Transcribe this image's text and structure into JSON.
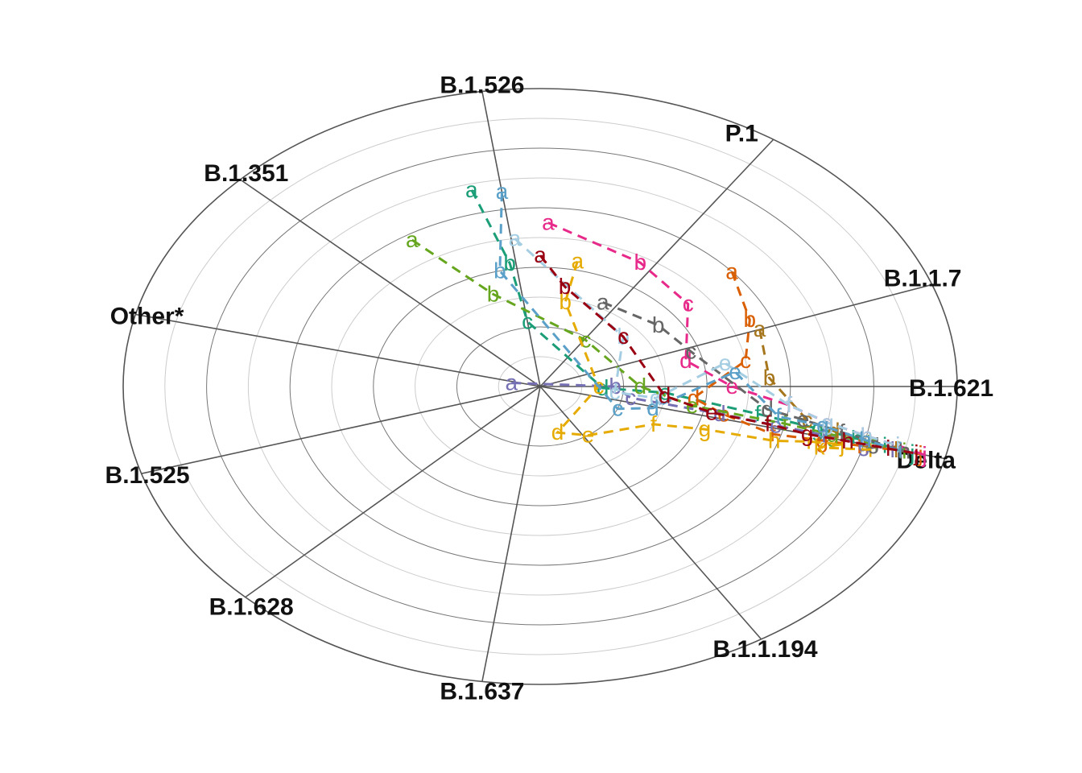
{
  "chart_data": {
    "type": "scatter",
    "subtype": "radial-trajectories",
    "title": "",
    "axes": [
      {
        "name": "Delta",
        "angle_deg": -14
      },
      {
        "name": "B.1.621",
        "angle_deg": 0
      },
      {
        "name": "B.1.1.7",
        "angle_deg": 20
      },
      {
        "name": "P.1",
        "angle_deg": 56
      },
      {
        "name": "B.1.526",
        "angle_deg": 98
      },
      {
        "name": "B.1.351",
        "angle_deg": 136
      },
      {
        "name": "Other*",
        "angle_deg": 166
      },
      {
        "name": "B.1.525",
        "angle_deg": 197
      },
      {
        "name": "B.1.628",
        "angle_deg": 225
      },
      {
        "name": "B.1.637",
        "angle_deg": 262
      },
      {
        "name": "B.1.1.194",
        "angle_deg": 302
      }
    ],
    "rings": [
      0.1,
      0.2,
      0.3,
      0.4,
      0.5,
      0.6,
      0.7,
      0.8,
      0.9,
      1.0
    ],
    "radius_range": [
      0,
      1
    ],
    "grid": true,
    "series": [
      {
        "color": "#1B9E77",
        "points": [
          {
            "label": "a",
            "r": 0.68,
            "theta": 104
          },
          {
            "label": "b",
            "r": 0.42,
            "theta": 100
          },
          {
            "label": "c",
            "r": 0.22,
            "theta": 98
          },
          {
            "label": "d",
            "r": 0.15,
            "theta": -2
          },
          {
            "label": "e",
            "r": 0.3,
            "theta": -4
          },
          {
            "label": "f",
            "r": 0.53,
            "theta": -10
          },
          {
            "label": "g",
            "r": 0.68,
            "theta": -12
          },
          {
            "label": "h",
            "r": 0.78,
            "theta": -13
          },
          {
            "label": "i",
            "r": 0.85,
            "theta": -13.5
          },
          {
            "label": "j",
            "r": 0.92,
            "theta": -14
          }
        ]
      },
      {
        "color": "#D95F02",
        "points": [
          {
            "label": "a",
            "r": 0.6,
            "theta": 40
          },
          {
            "label": "b",
            "r": 0.55,
            "theta": 24
          },
          {
            "label": "c",
            "r": 0.5,
            "theta": 10
          },
          {
            "label": "d",
            "r": 0.37,
            "theta": -6
          },
          {
            "label": "e",
            "r": 0.45,
            "theta": -12
          },
          {
            "label": "f",
            "r": 0.58,
            "theta": -16
          },
          {
            "label": "g",
            "r": 0.7,
            "theta": -15
          },
          {
            "label": "h",
            "r": 0.8,
            "theta": -14.5
          },
          {
            "label": "i",
            "r": 0.88,
            "theta": -14
          },
          {
            "label": "j",
            "r": 0.94,
            "theta": -14
          }
        ]
      },
      {
        "color": "#7570B3",
        "points": [
          {
            "label": "a",
            "r": 0.07,
            "theta": 170
          },
          {
            "label": "b",
            "r": 0.18,
            "theta": 0
          },
          {
            "label": "c",
            "r": 0.22,
            "theta": -10
          },
          {
            "label": "d",
            "r": 0.44,
            "theta": -12
          },
          {
            "label": "e",
            "r": 0.58,
            "theta": -13
          },
          {
            "label": "f",
            "r": 0.7,
            "theta": -13.5
          },
          {
            "label": "g",
            "r": 0.8,
            "theta": -14
          },
          {
            "label": "h",
            "r": 0.88,
            "theta": -14
          },
          {
            "label": "i",
            "r": 0.95,
            "theta": -14
          }
        ]
      },
      {
        "color": "#E7298A",
        "points": [
          {
            "label": "a",
            "r": 0.55,
            "theta": 88
          },
          {
            "label": "b",
            "r": 0.48,
            "theta": 60
          },
          {
            "label": "c",
            "r": 0.45,
            "theta": 38
          },
          {
            "label": "d",
            "r": 0.36,
            "theta": 14
          },
          {
            "label": "e",
            "r": 0.46,
            "theta": 0
          },
          {
            "label": "f",
            "r": 0.6,
            "theta": -6
          },
          {
            "label": "g",
            "r": 0.7,
            "theta": -10
          },
          {
            "label": "h",
            "r": 0.8,
            "theta": -12
          },
          {
            "label": "i",
            "r": 0.88,
            "theta": -13
          },
          {
            "label": "j",
            "r": 0.95,
            "theta": -14
          }
        ]
      },
      {
        "color": "#66A61E",
        "points": [
          {
            "label": "a",
            "r": 0.58,
            "theta": 122
          },
          {
            "label": "b",
            "r": 0.33,
            "theta": 110
          },
          {
            "label": "c",
            "r": 0.19,
            "theta": 55
          },
          {
            "label": "d",
            "r": 0.24,
            "theta": 0
          },
          {
            "label": "e",
            "r": 0.37,
            "theta": -10
          },
          {
            "label": "f",
            "r": 0.6,
            "theta": -12
          },
          {
            "label": "g",
            "r": 0.72,
            "theta": -13
          },
          {
            "label": "h",
            "r": 0.82,
            "theta": -13.5
          },
          {
            "label": "i",
            "r": 0.9,
            "theta": -14
          }
        ]
      },
      {
        "color": "#E6AB02",
        "points": [
          {
            "label": "a",
            "r": 0.43,
            "theta": 78
          },
          {
            "label": "b",
            "r": 0.29,
            "theta": 78
          },
          {
            "label": "c",
            "r": 0.14,
            "theta": 0
          },
          {
            "label": "d",
            "r": 0.16,
            "theta": 285
          },
          {
            "label": "e",
            "r": 0.2,
            "theta": 305
          },
          {
            "label": "f",
            "r": 0.3,
            "theta": 335
          },
          {
            "label": "g",
            "r": 0.42,
            "theta": 340
          },
          {
            "label": "h",
            "r": 0.59,
            "theta": 342
          },
          {
            "label": "i",
            "r": 0.67,
            "theta": 344
          },
          {
            "label": "j",
            "r": 0.75,
            "theta": 345
          },
          {
            "label": "k",
            "r": 0.7,
            "theta": 343
          },
          {
            "label": "l",
            "r": 0.82,
            "theta": 345
          }
        ]
      },
      {
        "color": "#A6761D",
        "points": [
          {
            "label": "a",
            "r": 0.56,
            "theta": 20
          },
          {
            "label": "b",
            "r": 0.55,
            "theta": 3
          },
          {
            "label": "c",
            "r": 0.65,
            "theta": -10
          },
          {
            "label": "d",
            "r": 0.72,
            "theta": -12
          },
          {
            "label": "e",
            "r": 0.8,
            "theta": -13
          },
          {
            "label": "f",
            "r": 0.88,
            "theta": -14
          }
        ]
      },
      {
        "color": "#666666",
        "points": [
          {
            "label": "a",
            "r": 0.32,
            "theta": 62
          },
          {
            "label": "b",
            "r": 0.35,
            "theta": 36
          },
          {
            "label": "c",
            "r": 0.38,
            "theta": 18
          },
          {
            "label": "d",
            "r": 0.55,
            "theta": -8
          },
          {
            "label": "e",
            "r": 0.64,
            "theta": -10
          },
          {
            "label": "f",
            "r": 0.74,
            "theta": -12
          },
          {
            "label": "g",
            "r": 0.82,
            "theta": -13
          },
          {
            "label": "h",
            "r": 0.9,
            "theta": -14
          }
        ]
      },
      {
        "color": "#A6CEE3",
        "points": [
          {
            "label": "a",
            "r": 0.5,
            "theta": 97
          },
          {
            "label": "b",
            "r": 0.26,
            "theta": 40
          },
          {
            "label": "c",
            "r": 0.18,
            "theta": -6
          },
          {
            "label": "d",
            "r": 0.28,
            "theta": -8
          },
          {
            "label": "e",
            "r": 0.45,
            "theta": 10
          },
          {
            "label": "f",
            "r": 0.6,
            "theta": -6
          },
          {
            "label": "g",
            "r": 0.7,
            "theta": -10
          },
          {
            "label": "h",
            "r": 0.8,
            "theta": -12
          },
          {
            "label": "i",
            "r": 0.88,
            "theta": -13
          }
        ]
      },
      {
        "color": "#5AA0C8",
        "points": [
          {
            "label": "a",
            "r": 0.66,
            "theta": 98
          },
          {
            "label": "b",
            "r": 0.4,
            "theta": 104
          },
          {
            "label": "c",
            "r": 0.2,
            "theta": 338
          },
          {
            "label": "d",
            "r": 0.28,
            "theta": 345
          },
          {
            "label": "e",
            "r": 0.47,
            "theta": 6
          },
          {
            "label": "f",
            "r": 0.58,
            "theta": 350
          },
          {
            "label": "g",
            "r": 0.69,
            "theta": 349
          },
          {
            "label": "h",
            "r": 0.8,
            "theta": 347
          },
          {
            "label": "i",
            "r": 0.89,
            "theta": 346
          }
        ]
      },
      {
        "color": "#990011",
        "points": [
          {
            "label": "a",
            "r": 0.44,
            "theta": 90
          },
          {
            "label": "b",
            "r": 0.34,
            "theta": 80
          },
          {
            "label": "c",
            "r": 0.26,
            "theta": 40
          },
          {
            "label": "d",
            "r": 0.3,
            "theta": -6
          },
          {
            "label": "e",
            "r": 0.42,
            "theta": -12
          },
          {
            "label": "f",
            "r": 0.56,
            "theta": -13
          },
          {
            "label": "g",
            "r": 0.66,
            "theta": -14
          },
          {
            "label": "h",
            "r": 0.76,
            "theta": -14
          },
          {
            "label": "i",
            "r": 0.86,
            "theta": -14
          },
          {
            "label": "j",
            "r": 0.93,
            "theta": -14
          }
        ]
      }
    ]
  }
}
